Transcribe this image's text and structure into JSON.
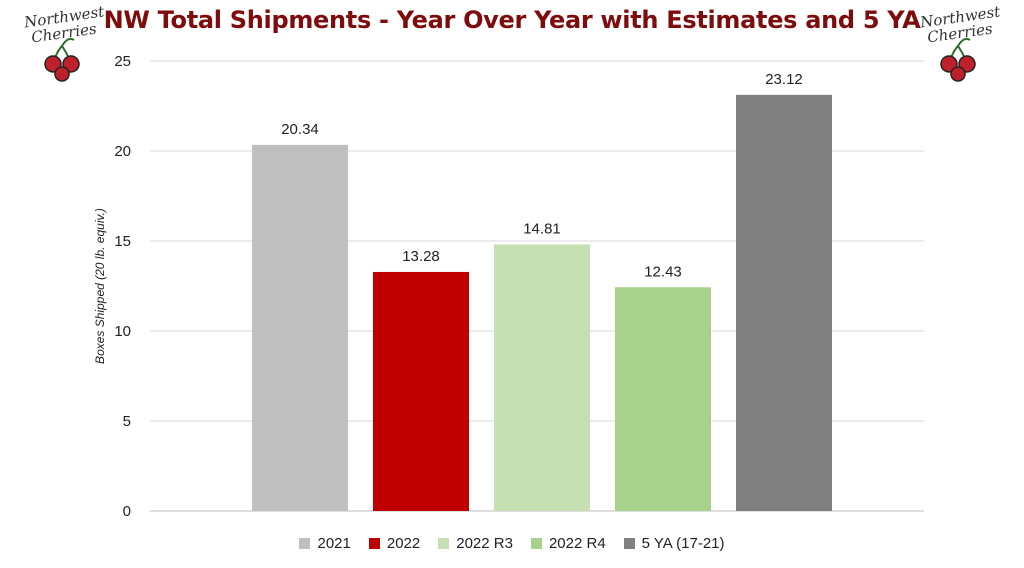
{
  "chart_data": {
    "type": "bar",
    "title": "NW Total Shipments - Year Over Year with Estimates and 5 YA",
    "ylabel": "Boxes Shipped (20 lb. equiv.)",
    "xlabel": "",
    "ylim": [
      0,
      25
    ],
    "yticks": [
      "0",
      "5",
      "10",
      "15",
      "20",
      "25"
    ],
    "grid": true,
    "legend_position": "bottom",
    "categories": [
      "2021",
      "2022",
      "2022 R3",
      "2022 R4",
      "5 YA (17-21)"
    ],
    "values": [
      20.34,
      13.28,
      14.81,
      12.43,
      23.12
    ],
    "labels": [
      "20.34",
      "13.28",
      "14.81",
      "12.43",
      "23.12"
    ],
    "colors": [
      "#bfbfbf",
      "#c00000",
      "#c6e0b4",
      "#a9d18e",
      "#808080"
    ]
  },
  "logo": {
    "line1": "Northwest",
    "line2": "Cherries",
    "cherry_color": "#c0202a"
  }
}
